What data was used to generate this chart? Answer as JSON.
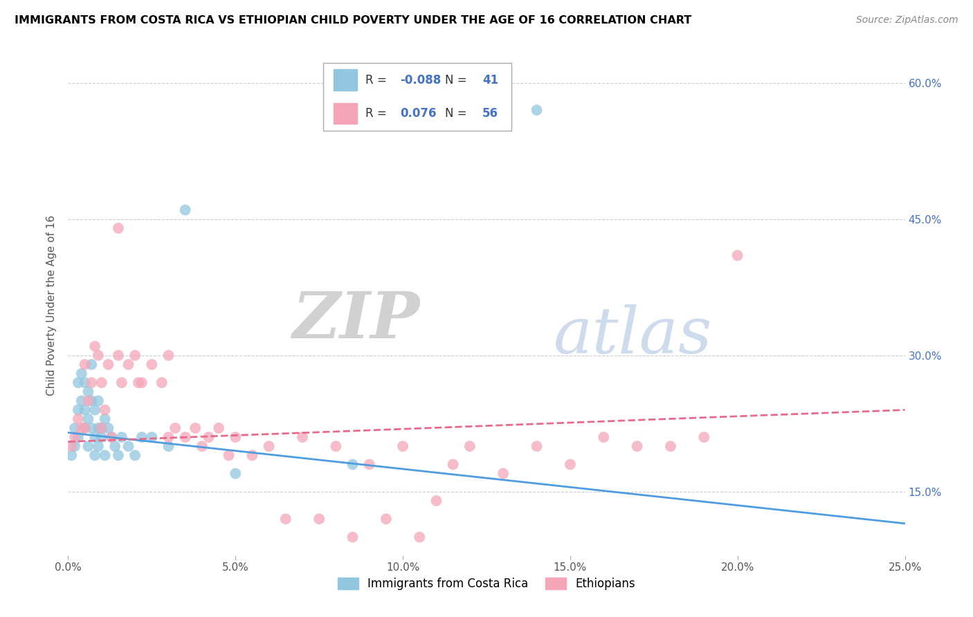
{
  "title": "IMMIGRANTS FROM COSTA RICA VS ETHIOPIAN CHILD POVERTY UNDER THE AGE OF 16 CORRELATION CHART",
  "source": "Source: ZipAtlas.com",
  "ylabel": "Child Poverty Under the Age of 16",
  "xlim": [
    0.0,
    0.25
  ],
  "ylim": [
    0.08,
    0.63
  ],
  "xtick_vals": [
    0.0,
    0.05,
    0.1,
    0.15,
    0.2,
    0.25
  ],
  "ytick_vals": [
    0.15,
    0.3,
    0.45,
    0.6
  ],
  "ytick_labels": [
    "15.0%",
    "30.0%",
    "45.0%",
    "60.0%"
  ],
  "xtick_labels": [
    "0.0%",
    "5.0%",
    "10.0%",
    "15.0%",
    "20.0%",
    "25.0%"
  ],
  "legend_labels": [
    "Immigrants from Costa Rica",
    "Ethiopians"
  ],
  "legend_r": [
    "-0.088",
    "0.076"
  ],
  "legend_n": [
    "41",
    "56"
  ],
  "blue_color": "#92c5de",
  "pink_color": "#f4a6b8",
  "blue_line_color": "#4d9de0",
  "pink_line_color": "#e86a8a",
  "watermark_zip": "ZIP",
  "watermark_atlas": "atlas",
  "blue_scatter_x": [
    0.001,
    0.002,
    0.002,
    0.003,
    0.003,
    0.003,
    0.004,
    0.004,
    0.005,
    0.005,
    0.005,
    0.006,
    0.006,
    0.006,
    0.007,
    0.007,
    0.007,
    0.008,
    0.008,
    0.008,
    0.009,
    0.009,
    0.009,
    0.01,
    0.01,
    0.011,
    0.011,
    0.012,
    0.013,
    0.014,
    0.015,
    0.016,
    0.018,
    0.02,
    0.022,
    0.025,
    0.03,
    0.035,
    0.05,
    0.085,
    0.14
  ],
  "blue_scatter_y": [
    0.19,
    0.2,
    0.22,
    0.21,
    0.24,
    0.27,
    0.25,
    0.28,
    0.22,
    0.24,
    0.27,
    0.23,
    0.26,
    0.2,
    0.25,
    0.22,
    0.29,
    0.21,
    0.24,
    0.19,
    0.22,
    0.25,
    0.2,
    0.22,
    0.21,
    0.23,
    0.19,
    0.22,
    0.21,
    0.2,
    0.19,
    0.21,
    0.2,
    0.19,
    0.21,
    0.21,
    0.2,
    0.46,
    0.17,
    0.18,
    0.57
  ],
  "pink_scatter_x": [
    0.001,
    0.002,
    0.003,
    0.004,
    0.005,
    0.005,
    0.006,
    0.007,
    0.008,
    0.009,
    0.01,
    0.01,
    0.011,
    0.012,
    0.013,
    0.015,
    0.015,
    0.016,
    0.018,
    0.02,
    0.021,
    0.022,
    0.025,
    0.028,
    0.03,
    0.03,
    0.032,
    0.035,
    0.038,
    0.04,
    0.042,
    0.045,
    0.048,
    0.05,
    0.055,
    0.06,
    0.065,
    0.07,
    0.075,
    0.08,
    0.09,
    0.1,
    0.11,
    0.12,
    0.13,
    0.14,
    0.15,
    0.16,
    0.17,
    0.18,
    0.19,
    0.2,
    0.085,
    0.095,
    0.105,
    0.115
  ],
  "pink_scatter_y": [
    0.2,
    0.21,
    0.23,
    0.22,
    0.22,
    0.29,
    0.25,
    0.27,
    0.31,
    0.3,
    0.22,
    0.27,
    0.24,
    0.29,
    0.21,
    0.44,
    0.3,
    0.27,
    0.29,
    0.3,
    0.27,
    0.27,
    0.29,
    0.27,
    0.21,
    0.3,
    0.22,
    0.21,
    0.22,
    0.2,
    0.21,
    0.22,
    0.19,
    0.21,
    0.19,
    0.2,
    0.12,
    0.21,
    0.12,
    0.2,
    0.18,
    0.2,
    0.14,
    0.2,
    0.17,
    0.2,
    0.18,
    0.21,
    0.2,
    0.2,
    0.21,
    0.41,
    0.1,
    0.12,
    0.1,
    0.18
  ],
  "blue_trend_y_start": 0.215,
  "blue_trend_y_end": 0.115,
  "pink_trend_y_start": 0.205,
  "pink_trend_y_end": 0.24
}
